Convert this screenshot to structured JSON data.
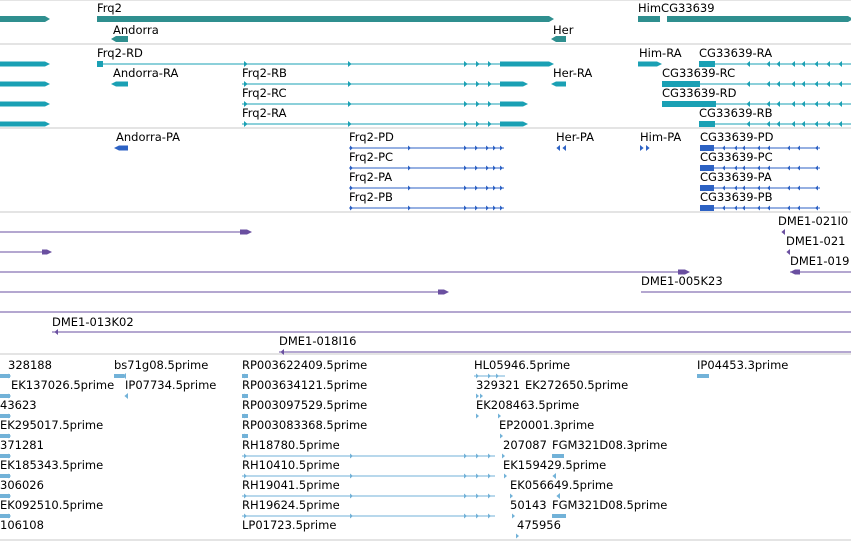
{
  "colors": {
    "gene": "#2f8f8f",
    "mrna": "#1aa0b4",
    "protein": "#2d62c4",
    "clone": "#6a4fa0",
    "est": "#72b2d8",
    "separator": "#c8c8c8"
  },
  "tracks": {
    "genes": [
      "Frq2",
      "HimCG33639",
      "Andorra",
      "Her"
    ],
    "transcripts": [
      "Frq2-RD",
      "Andorra-RA",
      "Frq2-RB",
      "Frq2-RC",
      "Frq2-RA",
      "Her-RA",
      "Him-RA",
      "CG33639-RA",
      "CG33639-RC",
      "CG33639-RD",
      "CG33639-RB"
    ],
    "proteins": [
      "Andorra-PA",
      "Frq2-PD",
      "Frq2-PC",
      "Frq2-PA",
      "Frq2-PB",
      "Her-PA",
      "Him-PA",
      "CG33639-PD",
      "CG33639-PC",
      "CG33639-PA",
      "CG33639-PB"
    ],
    "clones": [
      "DME1-021I0",
      "DME1-021",
      "DME1-019",
      "DME1-005K23",
      "DME1-013K02",
      "DME1-018I16"
    ],
    "ests": [
      "328188",
      "bs71g08.5prime",
      "RP003622409.5prime",
      "HL05946.5prime",
      "IP04453.3prime",
      "EK137026.5prime",
      "IP07734.5prime",
      "RP003634121.5prime",
      "329321",
      "EK272650.5prime",
      "43623",
      "RP003097529.5prime",
      "EK208463.5prime",
      "EK295017.5prime",
      "RP003083368.5prime",
      "EP20001.3prime",
      "371281",
      "RH18780.5prime",
      "207087",
      "FGM321D08.3prime",
      "EK185343.5prime",
      "RH10410.5prime",
      "EK159429.5prime",
      "306026",
      "RH19041.5prime",
      "EK056649.5prime",
      "EK092510.5prime",
      "RH19624.5prime",
      "50143",
      "FGM321D08.5prime",
      "106108",
      "LP01723.5prime",
      "475956"
    ]
  }
}
